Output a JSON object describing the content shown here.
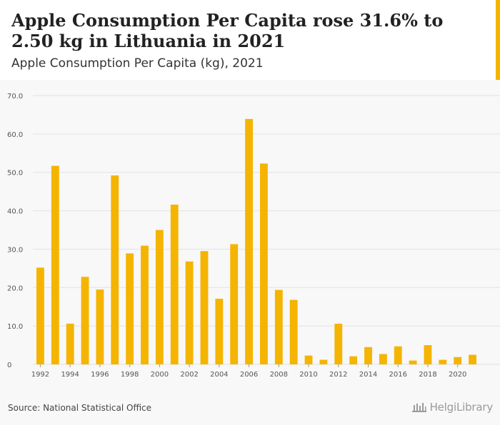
{
  "header": {
    "title": "Apple Consumption Per Capita rose 31.6% to 2.50 kg in Lithuania in 2021",
    "subtitle": "Apple Consumption Per Capita (kg), 2021"
  },
  "footer": {
    "source": "Source: National Statistical Office",
    "logo_text": "HelgiLibrary"
  },
  "colors": {
    "bar": "#f5b400",
    "grid": "#e2e2e2",
    "axis_text": "#555555"
  },
  "chart_data": {
    "type": "bar",
    "title": "Apple Consumption Per Capita (kg), 2021",
    "xlabel": "",
    "ylabel": "",
    "ylim": [
      0,
      70
    ],
    "yticks": [
      0,
      10,
      20,
      30,
      40,
      50,
      60,
      70
    ],
    "ytick_labels": [
      "0",
      "10.0",
      "20.0",
      "30.0",
      "40.0",
      "50.0",
      "60.0",
      "70.0"
    ],
    "grid": true,
    "categories": [
      "1992",
      "1993",
      "1994",
      "1995",
      "1996",
      "1997",
      "1998",
      "1999",
      "2000",
      "2001",
      "2002",
      "2003",
      "2004",
      "2005",
      "2006",
      "2007",
      "2008",
      "2009",
      "2010",
      "2011",
      "2012",
      "2013",
      "2014",
      "2015",
      "2016",
      "2017",
      "2018",
      "2019",
      "2020",
      "2021"
    ],
    "xtick_labels": [
      "1992",
      "1994",
      "1996",
      "1998",
      "2000",
      "2002",
      "2004",
      "2006",
      "2008",
      "2010",
      "2012",
      "2014",
      "2016",
      "2018",
      "2020"
    ],
    "values": [
      25.2,
      51.7,
      10.6,
      22.8,
      19.5,
      49.2,
      28.9,
      30.9,
      35.0,
      41.6,
      26.8,
      29.5,
      17.1,
      31.3,
      63.9,
      52.3,
      19.4,
      16.8,
      2.3,
      1.2,
      10.6,
      2.1,
      4.5,
      2.7,
      4.7,
      1.0,
      5.0,
      1.2,
      1.9,
      2.5
    ]
  }
}
